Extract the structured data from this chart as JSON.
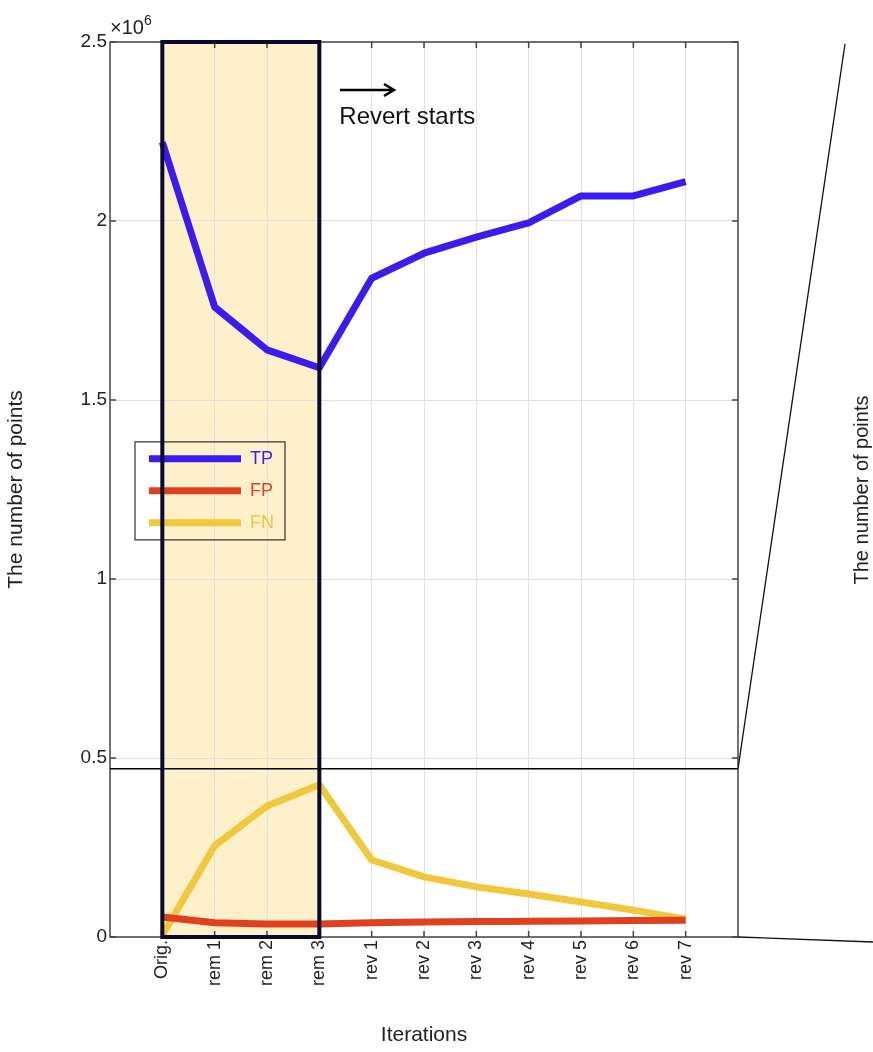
{
  "chart_data": {
    "type": "line",
    "xlabel": "Iterations",
    "ylabel": "The number of points",
    "categories": [
      "Orig.",
      "rem 1",
      "rem 2",
      "rem 3",
      "rev 1",
      "rev 2",
      "rev 3",
      "rev 4",
      "rev 5",
      "rev 6",
      "rev 7"
    ],
    "ylim": [
      0,
      2.5
    ],
    "yticks": [
      0,
      0.5,
      1,
      1.5,
      2,
      2.5
    ],
    "series": [
      {
        "name": "TP",
        "color": "#3a1cf0",
        "values": [
          2.22,
          1.76,
          1.64,
          1.59,
          1.84,
          1.91,
          1.955,
          1.995,
          2.07,
          2.07,
          2.11
        ]
      },
      {
        "name": "FP",
        "color": "#e0401f",
        "values": [
          0.056,
          0.04,
          0.036,
          0.036,
          0.04,
          0.042,
          0.043,
          0.044,
          0.045,
          0.046,
          0.047
        ]
      },
      {
        "name": "FN",
        "color": "#f0c83c",
        "values": [
          0.005,
          0.255,
          0.366,
          0.425,
          0.215,
          0.168,
          0.14,
          0.12,
          0.098,
          0.075,
          0.05
        ]
      }
    ],
    "bands": [
      {
        "axis": "x",
        "from": "Orig.",
        "to": "rem 3",
        "color": "#fbe3a0"
      }
    ],
    "ref_lines": [
      {
        "axis": "y",
        "value": 0.47,
        "color": "#000000"
      }
    ],
    "annotations": [
      "×10$^{6}$",
      "Revert starts",
      "The number of points"
    ],
    "grid": true,
    "legend": "left",
    "marker": "none",
    "line_style": "solid"
  }
}
